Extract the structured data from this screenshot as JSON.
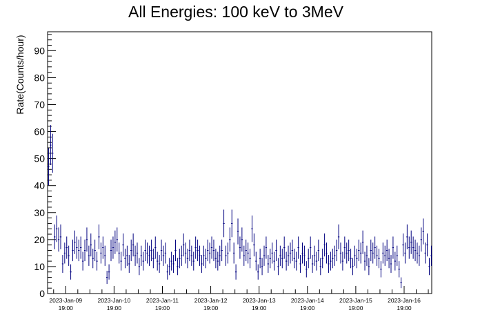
{
  "chart_data": {
    "type": "scatter",
    "title": "All Energies:  100 keV to 3MeV",
    "xlabel": "",
    "ylabel": "Rate(Counts/hour)",
    "ylim": [
      0,
      97
    ],
    "yticks": [
      0,
      10,
      20,
      30,
      40,
      50,
      60,
      70,
      80,
      90
    ],
    "x_unit": "hours since 2023-Jan-09 00:00",
    "xlim": [
      10.0,
      200.7
    ],
    "xtick_labels": [
      {
        "date": "2023-Jan-09",
        "time": "19:00"
      },
      {
        "date": "2023-Jan-10",
        "time": "19:00"
      },
      {
        "date": "2023-Jan-11",
        "time": "19:00"
      },
      {
        "date": "2023-Jan-12",
        "time": "19:00"
      },
      {
        "date": "2023-Jan-13",
        "time": "19:00"
      },
      {
        "date": "2023-Jan-14",
        "time": "19:00"
      },
      {
        "date": "2023-Jan-15",
        "time": "19:00"
      },
      {
        "date": "2023-Jan-16",
        "time": "19:00"
      }
    ],
    "grid": false,
    "error_bars": true,
    "series": [
      {
        "color": "#00007f",
        "values": [
          47,
          55,
          52,
          21,
          24,
          20,
          21,
          11,
          15,
          17,
          14,
          8,
          16,
          19,
          17,
          16,
          17,
          12,
          16,
          20,
          14,
          18,
          13,
          16,
          12,
          21,
          15,
          17,
          14,
          6,
          8,
          16,
          17,
          19,
          20,
          15,
          12,
          18,
          13,
          14,
          11,
          16,
          18,
          14,
          15,
          10,
          14,
          12,
          16,
          15,
          14,
          16,
          13,
          17,
          12,
          11,
          16,
          14,
          15,
          8,
          10,
          12,
          11,
          16,
          10,
          13,
          14,
          18,
          15,
          13,
          16,
          14,
          12,
          17,
          16,
          14,
          11,
          14,
          13,
          16,
          15,
          17,
          16,
          13,
          12,
          14,
          16,
          26,
          14,
          15,
          20,
          26,
          15,
          8,
          23,
          17,
          20,
          14,
          16,
          15,
          13,
          24,
          18,
          12,
          8,
          13,
          10,
          14,
          17,
          11,
          13,
          15,
          12,
          16,
          10,
          14,
          13,
          17,
          12,
          14,
          15,
          16,
          13,
          12,
          17,
          11,
          15,
          14,
          9,
          13,
          17,
          11,
          14,
          12,
          16,
          10,
          13,
          18,
          15,
          11,
          12,
          13,
          14,
          16,
          21,
          15,
          12,
          17,
          15,
          16,
          13,
          10,
          14,
          13,
          16,
          15,
          19,
          12,
          14,
          10,
          16,
          15,
          17,
          14,
          13,
          9,
          15,
          14,
          16,
          13,
          11,
          17,
          12,
          14,
          9,
          4,
          18,
          15,
          21,
          17,
          19,
          17,
          16,
          15,
          14,
          20,
          23,
          15,
          18,
          10,
          14,
          12,
          9,
          13,
          17,
          9,
          12,
          16,
          11,
          20,
          15,
          12,
          14,
          10,
          16,
          13,
          14,
          12,
          18,
          11,
          15,
          13,
          14
        ]
      }
    ]
  }
}
